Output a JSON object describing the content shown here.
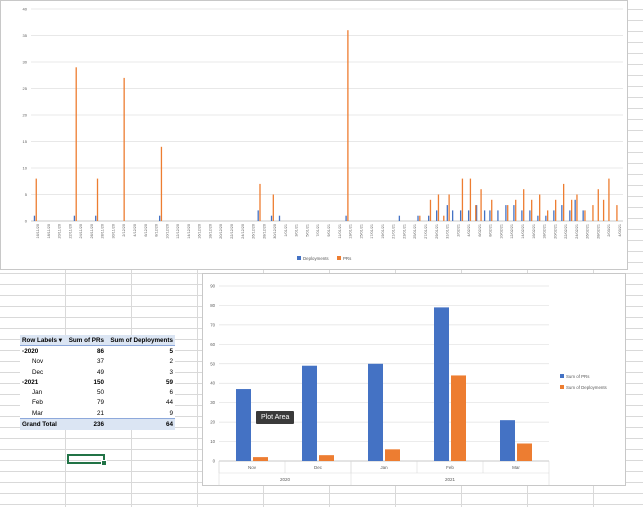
{
  "top_chart": {
    "y_ticks": [
      "0",
      "5",
      "10",
      "15",
      "20",
      "25",
      "30",
      "35",
      "40"
    ],
    "x_labels": [
      "16/11/20",
      "18/11/20",
      "20/11/20",
      "22/11/20",
      "24/11/20",
      "26/11/20",
      "28/11/20",
      "30/11/20",
      "2/12/20",
      "4/12/20",
      "6/12/20",
      "8/12/20",
      "10/12/20",
      "12/12/20",
      "14/12/20",
      "16/12/20",
      "18/12/20",
      "20/12/20",
      "22/12/20",
      "24/12/20",
      "26/12/20",
      "28/12/20",
      "30/12/20",
      "1/01/21",
      "3/01/21",
      "5/01/21",
      "7/01/21",
      "9/01/21",
      "11/01/21",
      "13/01/21",
      "15/01/21",
      "17/01/21",
      "19/01/21",
      "21/01/21",
      "23/01/21",
      "25/01/21",
      "27/01/21",
      "29/01/21",
      "31/01/21",
      "2/02/21",
      "4/02/21",
      "6/02/21",
      "8/02/21",
      "10/02/21",
      "12/02/21",
      "14/02/21",
      "16/02/21",
      "18/02/21",
      "20/02/21",
      "22/02/21",
      "24/02/21",
      "26/02/21",
      "28/02/21",
      "2/03/21",
      "4/03/21"
    ],
    "legend": [
      "Deployments",
      "PRs"
    ],
    "colors": {
      "Deployments": "#4472c4",
      "PRs": "#ed7d31"
    }
  },
  "pivot": {
    "header": [
      "Row Labels",
      "Sum of PRs",
      "Sum of Deployments"
    ],
    "rows": [
      {
        "label": "2020",
        "prs": "86",
        "dep": "5",
        "level": "year",
        "prefix": "▫"
      },
      {
        "label": "Nov",
        "prs": "37",
        "dep": "2",
        "level": "month"
      },
      {
        "label": "Dec",
        "prs": "49",
        "dep": "3",
        "level": "month"
      },
      {
        "label": "2021",
        "prs": "150",
        "dep": "59",
        "level": "year",
        "prefix": "▫"
      },
      {
        "label": "Jan",
        "prs": "50",
        "dep": "6",
        "level": "month"
      },
      {
        "label": "Feb",
        "prs": "79",
        "dep": "44",
        "level": "month"
      },
      {
        "label": "Mar",
        "prs": "21",
        "dep": "9",
        "level": "month"
      }
    ],
    "total": {
      "label": "Grand Total",
      "prs": "236",
      "dep": "64"
    }
  },
  "tooltip": "Plot Area",
  "chart_data": [
    {
      "type": "bar",
      "title": "",
      "ylim": [
        0,
        40
      ],
      "series": [
        {
          "name": "Deployments",
          "points": [
            [
              0,
              1
            ],
            [
              15,
              1
            ],
            [
              23,
              1
            ],
            [
              47,
              1
            ],
            [
              84,
              2
            ],
            [
              89,
              1
            ],
            [
              92,
              1
            ],
            [
              117,
              1
            ],
            [
              137,
              1
            ],
            [
              144,
              1
            ],
            [
              148,
              1
            ],
            [
              151,
              2
            ],
            [
              155,
              3
            ],
            [
              157,
              2
            ],
            [
              160,
              2
            ],
            [
              163,
              2
            ],
            [
              166,
              3
            ],
            [
              169,
              2
            ],
            [
              171,
              2
            ],
            [
              174,
              2
            ],
            [
              177,
              3
            ],
            [
              180,
              3
            ],
            [
              183,
              2
            ],
            [
              186,
              2
            ],
            [
              189,
              1
            ],
            [
              192,
              1
            ],
            [
              195,
              2
            ],
            [
              198,
              3
            ],
            [
              201,
              2
            ],
            [
              203,
              4
            ],
            [
              206,
              2
            ]
          ]
        },
        {
          "name": "PRs",
          "points": [
            [
              0,
              8
            ],
            [
              15,
              29
            ],
            [
              23,
              8
            ],
            [
              33,
              27
            ],
            [
              47,
              14
            ],
            [
              84,
              7
            ],
            [
              89,
              5
            ],
            [
              117,
              36
            ],
            [
              144,
              1
            ],
            [
              148,
              4
            ],
            [
              151,
              5
            ],
            [
              153,
              1
            ],
            [
              155,
              5
            ],
            [
              160,
              8
            ],
            [
              163,
              8
            ],
            [
              165,
              3
            ],
            [
              167,
              6
            ],
            [
              171,
              4
            ],
            [
              177,
              3
            ],
            [
              180,
              4
            ],
            [
              183,
              6
            ],
            [
              186,
              4
            ],
            [
              189,
              5
            ],
            [
              192,
              2
            ],
            [
              195,
              4
            ],
            [
              198,
              7
            ],
            [
              201,
              4
            ],
            [
              203,
              5
            ],
            [
              206,
              2
            ],
            [
              209,
              3
            ],
            [
              211,
              6
            ],
            [
              213,
              4
            ],
            [
              215,
              8
            ],
            [
              218,
              3
            ]
          ]
        }
      ]
    },
    {
      "type": "bar",
      "title": "",
      "ylim": [
        0,
        90
      ],
      "y_ticks": [
        "0",
        "10",
        "20",
        "30",
        "40",
        "50",
        "60",
        "70",
        "80",
        "90"
      ],
      "categories": [
        "Nov",
        "Dec",
        "Jan",
        "Feb",
        "Mar"
      ],
      "groups": [
        {
          "label": "2020",
          "span": 2
        },
        {
          "label": "2021",
          "span": 3
        }
      ],
      "series": [
        {
          "name": "Sum of PRs",
          "values": [
            37,
            49,
            50,
            79,
            21
          ]
        },
        {
          "name": "Sum of Deployments",
          "values": [
            2,
            3,
            6,
            44,
            9
          ]
        }
      ],
      "colors": {
        "Sum of PRs": "#4472c4",
        "Sum of Deployments": "#ed7d31"
      }
    }
  ]
}
